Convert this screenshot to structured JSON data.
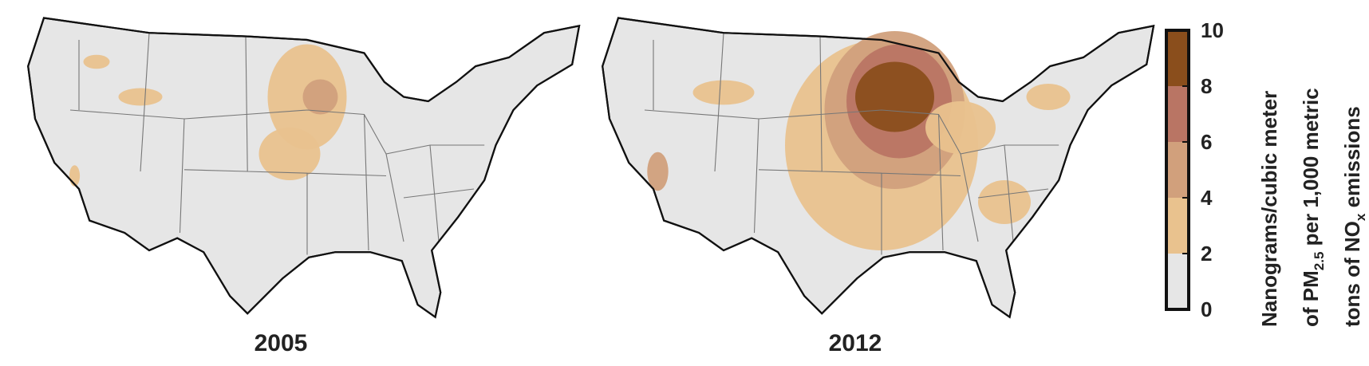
{
  "maps": [
    {
      "title": "2005"
    },
    {
      "title": "2012"
    }
  ],
  "colorbar": {
    "range": [
      0,
      10
    ],
    "ticks": [
      0,
      2,
      4,
      6,
      8,
      10
    ],
    "colors": [
      "#e6e6e6",
      "#e9c28e",
      "#d1a07c",
      "#b97564",
      "#8a4e1c"
    ],
    "label": [
      [
        "Nanograms/cubic meter"
      ],
      [
        "of PM",
        "2.5",
        " per 1,000 metric"
      ],
      [
        "tons of NO",
        "x",
        " emissions"
      ]
    ]
  }
}
